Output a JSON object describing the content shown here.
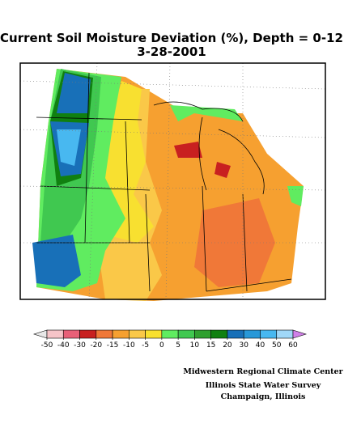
{
  "header": {
    "title": "Current Soil Moisture Deviation (%), Depth = 0-12",
    "date": "3-28-2001"
  },
  "legend": {
    "ticks": [
      -50,
      -40,
      -30,
      -20,
      -15,
      -10,
      -5,
      0,
      5,
      10,
      15,
      20,
      30,
      40,
      50,
      60
    ],
    "colors": [
      "#e8e8e8",
      "#f6c4c8",
      "#e86078",
      "#c82020",
      "#f07838",
      "#f6a030",
      "#fac848",
      "#f8e030",
      "#60ec60",
      "#40c850",
      "#30a030",
      "#108010",
      "#1870b8",
      "#2898d8",
      "#48b8f0",
      "#a0d8f8",
      "#d080e8"
    ]
  },
  "credits": [
    "Midwestern Regional Climate Center",
    "Illinois State Water Survey",
    "Champaign, Illinois"
  ]
}
